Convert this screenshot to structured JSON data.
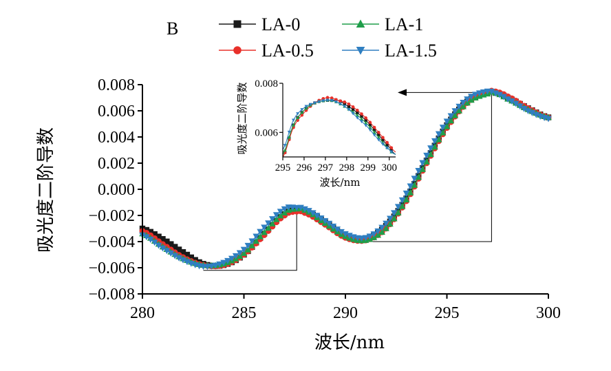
{
  "panel_label": "B",
  "colors": {
    "LA-0": "#1a1a1a",
    "LA-0.5": "#e8302a",
    "LA-1": "#1f9e4a",
    "LA-1.5": "#2f7fc1",
    "axis": "#000000",
    "zoom_lines": "#000000"
  },
  "markers": {
    "LA-0": "square",
    "LA-0.5": "circle",
    "LA-1": "triangle-up",
    "LA-1.5": "triangle-down"
  },
  "chart_data": [
    {
      "type": "line",
      "role": "main",
      "title": "",
      "xlabel": "波长/nm",
      "ylabel": "吸光度二阶导数",
      "xlim": [
        280,
        300
      ],
      "ylim": [
        -0.008,
        0.008
      ],
      "x_ticks": [
        280,
        285,
        290,
        295,
        300
      ],
      "y_ticks": [
        0.008,
        0.006,
        0.004,
        0.002,
        0.0,
        -0.002,
        -0.004,
        -0.006,
        -0.008
      ],
      "x_tick_labels": [
        "280",
        "285",
        "290",
        "295",
        "300"
      ],
      "y_tick_labels": [
        "0.008",
        "0.006",
        "0.004",
        "0.002",
        "0.000",
        "−0.002",
        "−0.004",
        "−0.006",
        "−0.008"
      ],
      "legend": {
        "position": "top",
        "entries": [
          "LA-0",
          "LA-1",
          "LA-0.5",
          "LA-1.5"
        ]
      },
      "series": [
        {
          "name": "LA-0",
          "x": [
            280,
            281,
            282,
            283,
            284,
            285,
            286,
            287,
            287.6,
            288,
            289,
            290,
            291,
            292,
            293,
            294,
            295,
            296,
            297,
            297.3,
            298,
            299,
            300
          ],
          "y": [
            -0.003,
            -0.0038,
            -0.0048,
            -0.0057,
            -0.0058,
            -0.005,
            -0.0034,
            -0.0019,
            -0.0016,
            -0.0017,
            -0.0025,
            -0.0036,
            -0.0038,
            -0.0028,
            -0.0007,
            0.0022,
            0.0049,
            0.0067,
            0.0074,
            0.0074,
            0.007,
            0.0062,
            0.0055
          ]
        },
        {
          "name": "LA-0.5",
          "x": [
            280,
            281,
            282,
            283,
            284,
            285,
            286,
            287,
            287.6,
            288,
            289,
            290,
            291,
            292,
            293,
            294,
            295,
            296,
            297,
            297.3,
            298,
            299,
            300
          ],
          "y": [
            -0.0032,
            -0.0042,
            -0.0052,
            -0.0058,
            -0.0058,
            -0.005,
            -0.0035,
            -0.002,
            -0.0017,
            -0.0018,
            -0.0027,
            -0.0037,
            -0.0039,
            -0.003,
            -0.0009,
            0.002,
            0.0047,
            0.0066,
            0.0074,
            0.0075,
            0.0071,
            0.0062,
            0.0055
          ]
        },
        {
          "name": "LA-1",
          "x": [
            280,
            281,
            282,
            283,
            284,
            285,
            286,
            287,
            287.6,
            288,
            289,
            290,
            291,
            292,
            293,
            294,
            295,
            296,
            297,
            297.3,
            298,
            299,
            300
          ],
          "y": [
            -0.0034,
            -0.0044,
            -0.0053,
            -0.0058,
            -0.0057,
            -0.0049,
            -0.0033,
            -0.0018,
            -0.0015,
            -0.0016,
            -0.0026,
            -0.0036,
            -0.0039,
            -0.003,
            -0.0008,
            0.0021,
            0.0048,
            0.0066,
            0.0073,
            0.0074,
            0.0069,
            0.0061,
            0.0055
          ]
        },
        {
          "name": "LA-1.5",
          "x": [
            280,
            281,
            282,
            283,
            284,
            285,
            286,
            287,
            287.6,
            288,
            289,
            290,
            291,
            292,
            293,
            294,
            295,
            296,
            297,
            297.3,
            298,
            299,
            300
          ],
          "y": [
            -0.0035,
            -0.0045,
            -0.0054,
            -0.0059,
            -0.0056,
            -0.0046,
            -0.0029,
            -0.0015,
            -0.0014,
            -0.0015,
            -0.0024,
            -0.0034,
            -0.0037,
            -0.0026,
            -0.0003,
            0.0026,
            0.0052,
            0.0069,
            0.0075,
            0.0074,
            0.0069,
            0.006,
            0.0054
          ]
        }
      ]
    },
    {
      "type": "line",
      "role": "inset",
      "title": "",
      "xlabel": "波长/nm",
      "ylabel": "吸光度二阶导数",
      "xlim": [
        295,
        300.3
      ],
      "ylim": [
        0.005,
        0.008
      ],
      "x_ticks": [
        295,
        296,
        297,
        298,
        299,
        300
      ],
      "y_ticks": [
        0.008,
        0.006
      ],
      "x_tick_labels": [
        "295",
        "296",
        "297",
        "298",
        "299",
        "300"
      ],
      "y_tick_labels": [
        "0.008",
        "0.006"
      ],
      "series": [
        {
          "name": "LA-0",
          "x": [
            295,
            295.5,
            296,
            296.5,
            297,
            297.3,
            297.6,
            298,
            298.5,
            299,
            299.5,
            300,
            300.3
          ],
          "y": [
            0.005,
            0.0063,
            0.0069,
            0.0072,
            0.0073,
            0.0073,
            0.0073,
            0.0071,
            0.0068,
            0.0064,
            0.0059,
            0.0054,
            0.0051
          ]
        },
        {
          "name": "LA-0.5",
          "x": [
            295,
            295.5,
            296,
            296.5,
            297,
            297.3,
            297.6,
            298,
            298.5,
            299,
            299.5,
            300,
            300.3
          ],
          "y": [
            0.005,
            0.0062,
            0.0068,
            0.0072,
            0.0074,
            0.0074,
            0.0073,
            0.0072,
            0.0069,
            0.0065,
            0.006,
            0.0055,
            0.0052
          ]
        },
        {
          "name": "LA-1",
          "x": [
            295,
            295.5,
            296,
            296.5,
            297,
            297.3,
            297.6,
            298,
            298.5,
            299,
            299.5,
            300,
            300.3
          ],
          "y": [
            0.0051,
            0.0063,
            0.0069,
            0.0072,
            0.0073,
            0.0073,
            0.0072,
            0.007,
            0.0067,
            0.0063,
            0.0058,
            0.0053,
            0.0051
          ]
        },
        {
          "name": "LA-1.5",
          "x": [
            295,
            295.5,
            296,
            296.5,
            297,
            297.3,
            297.6,
            298,
            298.5,
            299,
            299.5,
            300,
            300.3
          ],
          "y": [
            0.0053,
            0.0065,
            0.007,
            0.0072,
            0.0073,
            0.0073,
            0.0072,
            0.007,
            0.0066,
            0.0062,
            0.0057,
            0.0053,
            0.0051
          ]
        }
      ]
    }
  ]
}
